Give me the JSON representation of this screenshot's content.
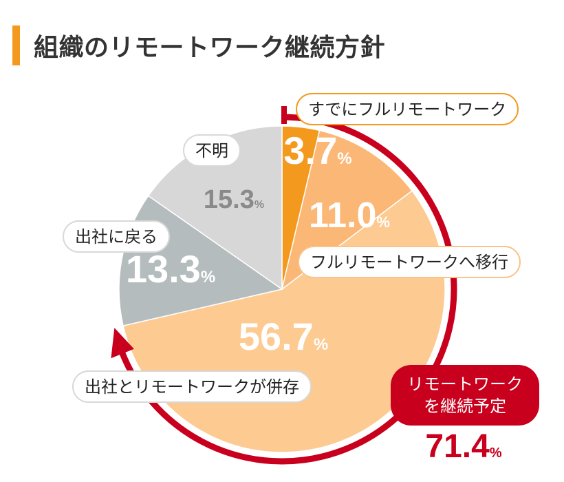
{
  "title": "組織のリモートワーク継続方針",
  "colors": {
    "accent": "#f39a1e",
    "arrow": "#c8001e",
    "already_full": "#f39a1e",
    "moving_full": "#fbb775",
    "hybrid": "#fdca91",
    "return_office": "#b4bcbe",
    "unknown": "#d7d7d7"
  },
  "chart_data": {
    "type": "pie",
    "categories": [
      "すでにフルリモートワーク",
      "フルリモートワークへ移行",
      "出社とリモートワークが併存",
      "出社に戻る",
      "不明"
    ],
    "values": [
      3.7,
      11.0,
      56.7,
      13.3,
      15.3
    ],
    "value_labels": [
      "3.7",
      "11.0",
      "56.7",
      "13.3",
      "15.3"
    ],
    "unit": "%",
    "annotation": {
      "line1": "リモートワーク",
      "line2": "を継続予定",
      "value": "71.4",
      "unit": "%"
    }
  }
}
